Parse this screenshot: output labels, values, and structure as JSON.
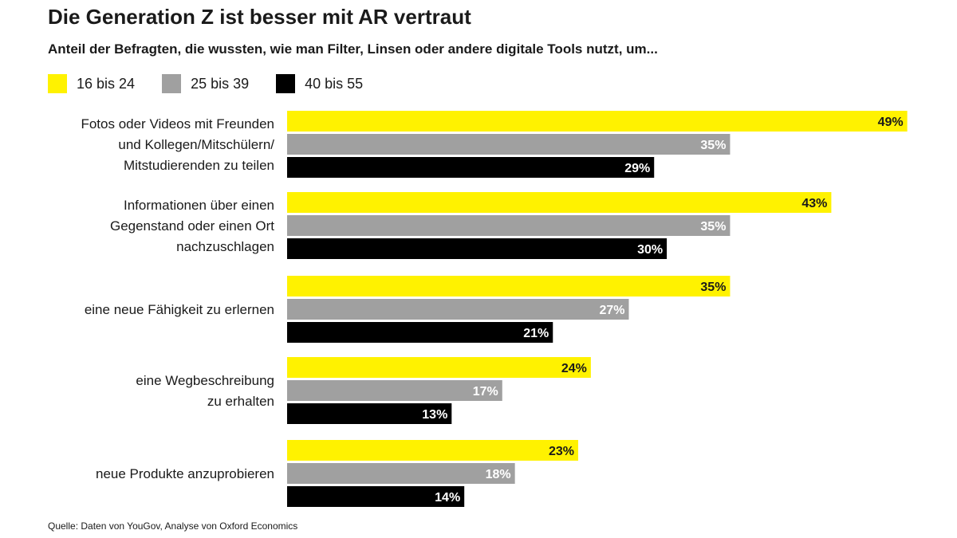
{
  "chart_data": {
    "type": "bar",
    "orientation": "horizontal",
    "title": "Die Generation Z ist besser mit AR vertraut",
    "subtitle": "Anteil der Befragten, die wussten, wie man Filter, Linsen oder andere digitale Tools nutzt, um...",
    "categories": [
      [
        "Fotos oder Videos mit Freunden",
        "und Kollegen/Mitschülern/",
        "Mitstudierenden zu teilen"
      ],
      [
        "Informationen über einen",
        "Gegenstand oder einen Ort",
        "nachzuschlagen"
      ],
      [
        "eine neue Fähigkeit zu erlernen"
      ],
      [
        "eine Wegbeschreibung",
        "zu erhalten"
      ],
      [
        "neue Produkte anzuprobieren"
      ]
    ],
    "series": [
      {
        "name": "16 bis 24",
        "color": "#fff200",
        "label_color": "#1a1a1a",
        "values": [
          49,
          43,
          35,
          24,
          23
        ]
      },
      {
        "name": "25 bis 39",
        "color": "#a0a0a0",
        "label_color": "#ffffff",
        "values": [
          35,
          35,
          27,
          17,
          18
        ]
      },
      {
        "name": "40 bis 55",
        "color": "#000000",
        "label_color": "#ffffff",
        "values": [
          29,
          30,
          21,
          13,
          14
        ]
      }
    ],
    "value_suffix": "%",
    "xlim": [
      0,
      49
    ],
    "legend_position": "top-left",
    "grid": false
  },
  "source": "Quelle: Daten von YouGov, Analyse von Oxford Economics"
}
